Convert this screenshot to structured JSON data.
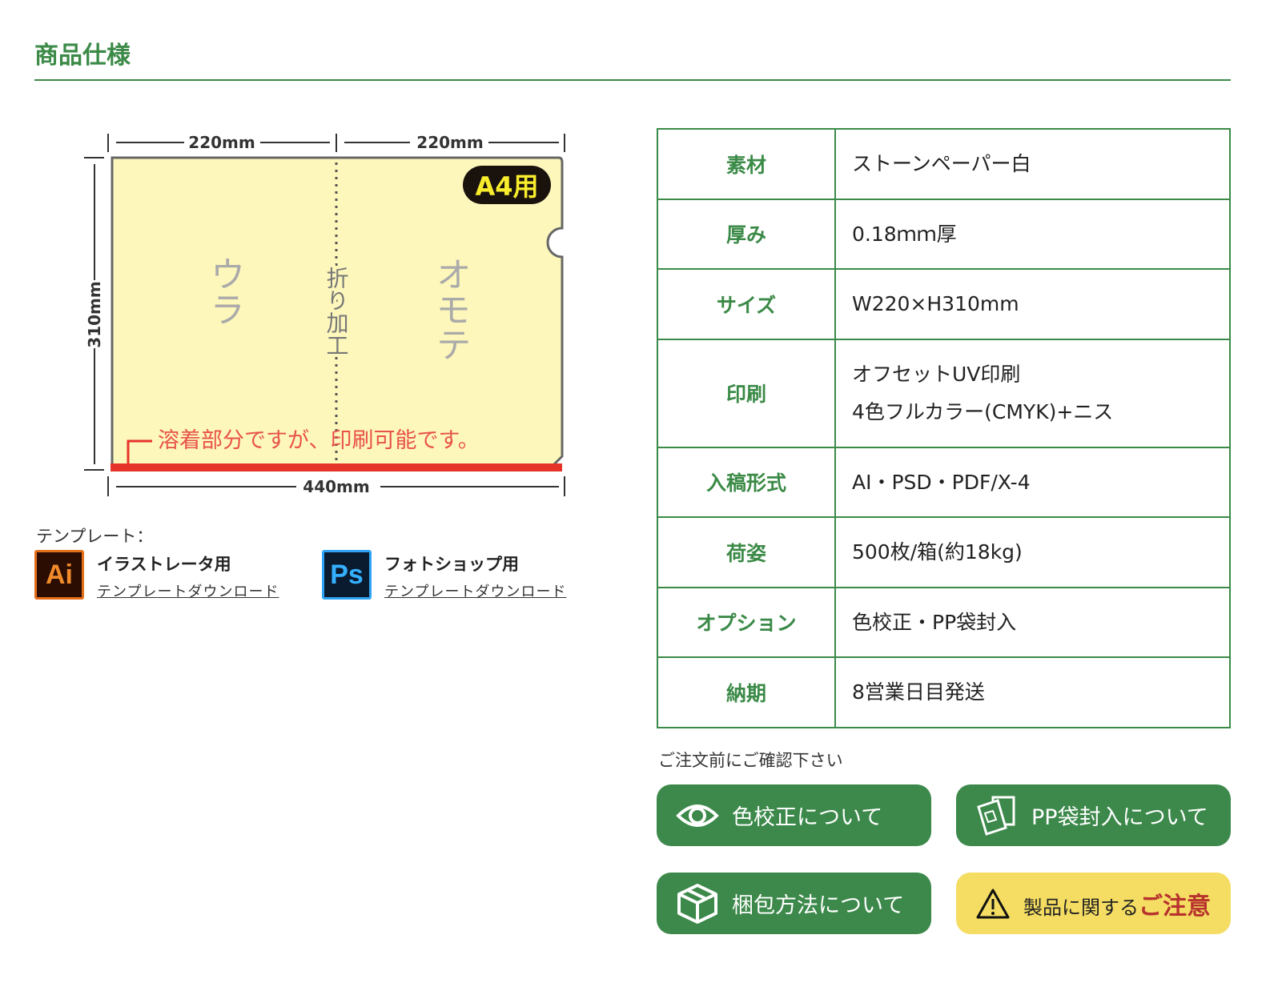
{
  "title": "商品仕様",
  "diagram": {
    "width_left": "220mm",
    "width_right": "220mm",
    "height": "310mm",
    "total_width": "440mm",
    "badge": "A4用",
    "back": "ウラ",
    "front": "オモテ",
    "fold": "折り加工",
    "weld_note": "溶着部分ですが、印刷可能です。"
  },
  "templates": {
    "label": "テンプレート：",
    "items": [
      {
        "icon": "illustrator-icon",
        "icon_text": "Ai",
        "name": "イラストレータ用",
        "link": "テンプレートダウンロード"
      },
      {
        "icon": "photoshop-icon",
        "icon_text": "Ps",
        "name": "フォトショップ用",
        "link": "テンプレートダウンロード"
      }
    ]
  },
  "specs": [
    {
      "k": "素材",
      "v": [
        "ストーンペーパー白"
      ]
    },
    {
      "k": "厚み",
      "v": [
        "0.18ｍｍ厚"
      ]
    },
    {
      "k": "サイズ",
      "v": [
        "W220×H310mm"
      ]
    },
    {
      "k": "印刷",
      "v": [
        "オフセットUV印刷",
        "4色フルカラー(CMYK)+ニス"
      ]
    },
    {
      "k": "入稿形式",
      "v": [
        "AI・PSD・PDF/X-4"
      ]
    },
    {
      "k": "荷姿",
      "v": [
        "500枚/箱(約18kg)"
      ]
    },
    {
      "k": "オプション",
      "v": [
        "色校正・PP袋封入"
      ]
    },
    {
      "k": "納期",
      "v": [
        "8営業日目発送"
      ]
    }
  ],
  "note": "ご注文前にご確認下さい",
  "buttons": {
    "color_proof": "色校正について",
    "pp_bag": "PP袋封入について",
    "packing": "梱包方法について",
    "caution_prefix": "製品に関する",
    "caution_em": "ご注意"
  },
  "colors": {
    "accent": "#3b8a47",
    "button": "#3c894b",
    "warning": "#f4dd62",
    "caution_text": "#b8332e"
  }
}
